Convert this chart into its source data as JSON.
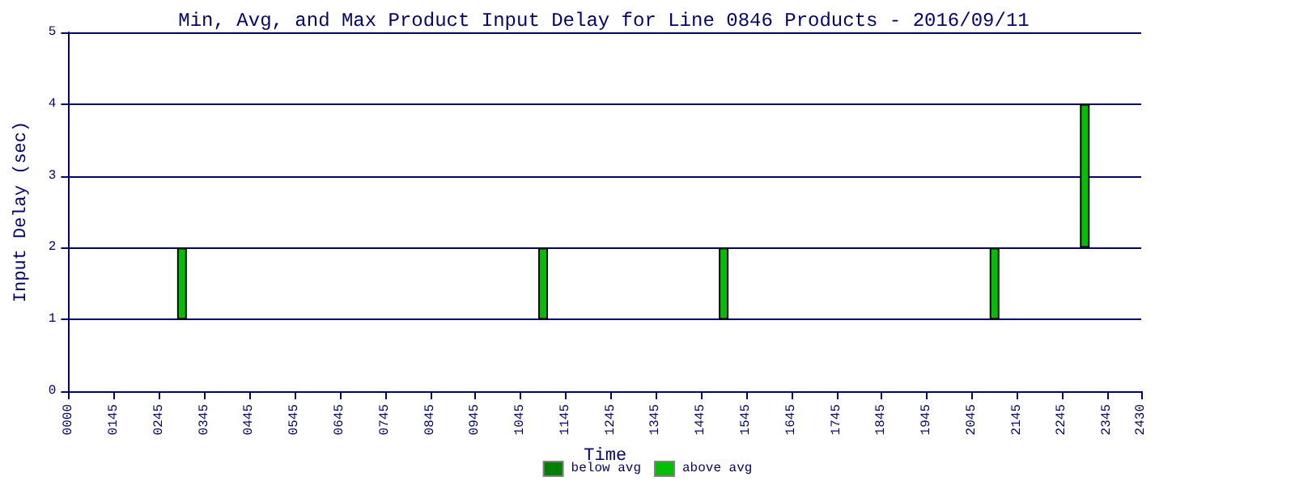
{
  "chart_data": {
    "type": "bar",
    "title": "Min, Avg, and Max Product Input Delay for Line 0846 Products - 2016/09/11",
    "xlabel": "Time",
    "ylabel": "Input Delay (sec)",
    "categories": [
      "0000",
      null,
      null,
      null,
      "0145",
      null,
      null,
      null,
      "0245",
      null,
      null,
      null,
      "0345",
      null,
      null,
      null,
      "0445",
      null,
      null,
      null,
      "0545",
      null,
      null,
      null,
      "0645",
      null,
      null,
      null,
      "0745",
      null,
      null,
      null,
      "0845",
      null,
      null,
      null,
      "0945",
      null,
      null,
      null,
      "1045",
      null,
      null,
      null,
      "1145",
      null,
      null,
      null,
      "1245",
      null,
      null,
      null,
      "1345",
      null,
      null,
      null,
      "1445",
      null,
      null,
      null,
      "1545",
      null,
      null,
      null,
      "1645",
      null,
      null,
      null,
      "1745",
      null,
      null,
      null,
      "1845",
      null,
      null,
      null,
      "1945",
      null,
      null,
      null,
      "2045",
      null,
      null,
      null,
      "2145",
      null,
      null,
      null,
      "2245",
      null,
      null,
      null,
      "2345",
      null,
      null,
      "2430"
    ],
    "series": [
      {
        "name": "below avg",
        "color": "#008000",
        "values": [
          null,
          null,
          null,
          null,
          null,
          null,
          null,
          null,
          null,
          null,
          null,
          null,
          null,
          null,
          null,
          null,
          null,
          null,
          null,
          null,
          null,
          null,
          null,
          null,
          null,
          null,
          null,
          null,
          null,
          null,
          null,
          null,
          null,
          null,
          null,
          null,
          null,
          null,
          null,
          null,
          null,
          null,
          null,
          null,
          null,
          null,
          null,
          null,
          null,
          null,
          null,
          null,
          null,
          null,
          null,
          null,
          null,
          null,
          null,
          null,
          null,
          null,
          null,
          null,
          null,
          null,
          null,
          null,
          null,
          null,
          null,
          null,
          null,
          null,
          null,
          null,
          null,
          null,
          null,
          null,
          null,
          null,
          null,
          null,
          null,
          null,
          null,
          null,
          null,
          null,
          null,
          null,
          null,
          null,
          null,
          null
        ]
      },
      {
        "name": "above avg",
        "color": "#00c000",
        "base": [
          null,
          null,
          null,
          null,
          null,
          null,
          null,
          null,
          null,
          null,
          1,
          null,
          null,
          null,
          null,
          null,
          null,
          null,
          null,
          null,
          null,
          null,
          null,
          null,
          null,
          null,
          null,
          null,
          null,
          null,
          null,
          null,
          null,
          null,
          null,
          null,
          null,
          null,
          null,
          null,
          null,
          null,
          1,
          null,
          null,
          null,
          null,
          null,
          null,
          null,
          null,
          null,
          null,
          null,
          null,
          null,
          null,
          null,
          1,
          null,
          null,
          null,
          null,
          null,
          null,
          null,
          null,
          null,
          null,
          null,
          null,
          null,
          null,
          null,
          null,
          null,
          null,
          null,
          null,
          null,
          null,
          null,
          1,
          null,
          null,
          null,
          null,
          null,
          null,
          null,
          2,
          null,
          null,
          null,
          null,
          null
        ],
        "values": [
          null,
          null,
          null,
          null,
          null,
          null,
          null,
          null,
          null,
          null,
          1,
          null,
          null,
          null,
          null,
          null,
          null,
          null,
          null,
          null,
          null,
          null,
          null,
          null,
          null,
          null,
          null,
          null,
          null,
          null,
          null,
          null,
          null,
          null,
          null,
          null,
          null,
          null,
          null,
          null,
          null,
          null,
          1,
          null,
          null,
          null,
          null,
          null,
          null,
          null,
          null,
          null,
          null,
          null,
          null,
          null,
          null,
          null,
          1,
          null,
          null,
          null,
          null,
          null,
          null,
          null,
          null,
          null,
          null,
          null,
          null,
          null,
          null,
          null,
          null,
          null,
          null,
          null,
          null,
          null,
          null,
          null,
          1,
          null,
          null,
          null,
          null,
          null,
          null,
          null,
          2,
          null,
          null,
          null,
          null,
          null
        ]
      }
    ],
    "ylim": [
      0,
      5
    ],
    "yticks": [
      0,
      1,
      2,
      3,
      4,
      5
    ],
    "grid": "y",
    "legend": "bottom"
  }
}
